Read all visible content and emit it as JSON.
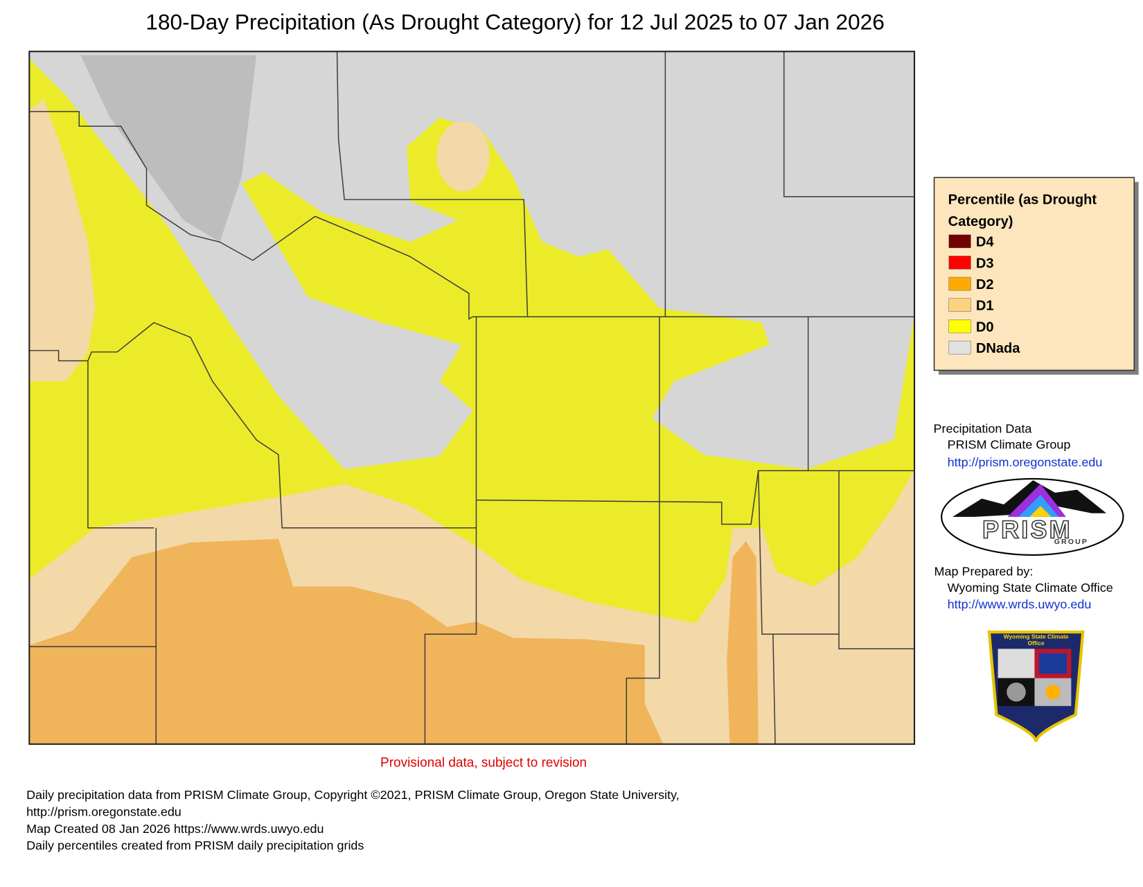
{
  "title": "180-Day Precipitation (As Drought Category) for 12 Jul 2025 to 07 Jan 2026",
  "map": {
    "note": "Provisional data, subject to revision"
  },
  "legend": {
    "title": "Percentile (as Drought Category)",
    "items": [
      {
        "label": "D4",
        "color": "#730000"
      },
      {
        "label": "D3",
        "color": "#ff0000"
      },
      {
        "label": "D2",
        "color": "#ffaa00"
      },
      {
        "label": "D1",
        "color": "#fcd37f"
      },
      {
        "label": "D0",
        "color": "#ffff00"
      },
      {
        "label": "DNada",
        "color": "#e1e1e1"
      }
    ]
  },
  "credits": {
    "data_heading": "Precipitation Data",
    "data_source": "PRISM Climate Group",
    "data_url": "http://prism.oregonstate.edu",
    "prepared_heading": "Map Prepared by:",
    "prepared_by": "Wyoming State Climate Office",
    "prepared_url": "http://www.wrds.uwyo.edu",
    "prism_logo": {
      "word": "PRISM",
      "sub": "GROUP"
    },
    "shield": {
      "text": "Wyoming State Climate Office"
    }
  },
  "footer": [
    "Daily precipitation data from PRISM Climate Group, Copyright ©2021, PRISM Climate Group, Oregon State University,",
    "http://prism.oregonstate.edu",
    "Map Created 08 Jan 2026 https://www.wrds.uwyo.edu",
    "Daily percentiles created from PRISM daily precipitation grids"
  ]
}
